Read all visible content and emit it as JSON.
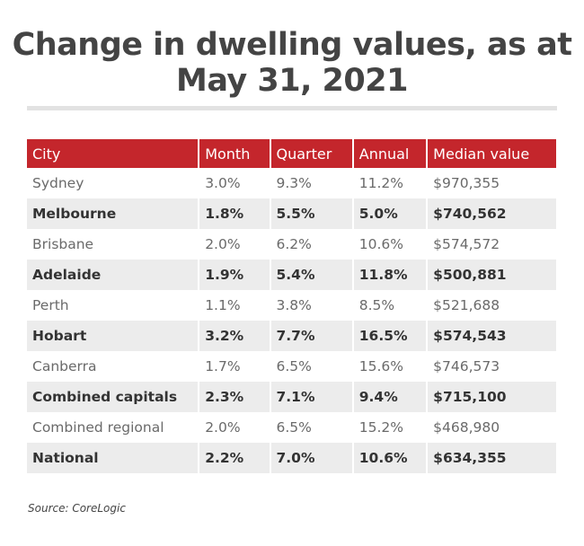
{
  "title": "Change in dwelling values, as at May 31, 2021",
  "source": "Source: CoreLogic",
  "colors": {
    "header": "#c4262c",
    "shade": "#ececec"
  },
  "chart_data": {
    "type": "table",
    "title": "Change in dwelling values, as at May 31, 2021",
    "columns": [
      "City",
      "Month",
      "Quarter",
      "Annual",
      "Median value"
    ],
    "rows": [
      [
        "Sydney",
        "3.0%",
        "9.3%",
        "11.2%",
        "$970,355"
      ],
      [
        "Melbourne",
        "1.8%",
        "5.5%",
        "5.0%",
        "$740,562"
      ],
      [
        "Brisbane",
        "2.0%",
        "6.2%",
        "10.6%",
        "$574,572"
      ],
      [
        "Adelaide",
        "1.9%",
        "5.4%",
        "11.8%",
        "$500,881"
      ],
      [
        "Perth",
        "1.1%",
        "3.8%",
        "8.5%",
        "$521,688"
      ],
      [
        "Hobart",
        "3.2%",
        "7.7%",
        "16.5%",
        "$574,543"
      ],
      [
        "Canberra",
        "1.7%",
        "6.5%",
        "15.6%",
        "$746,573"
      ],
      [
        "Combined capitals",
        "2.3%",
        "7.1%",
        "9.4%",
        "$715,100"
      ],
      [
        "Combined regional",
        "2.0%",
        "6.5%",
        "15.2%",
        "$468,980"
      ],
      [
        "National",
        "2.2%",
        "7.0%",
        "10.6%",
        "$634,355"
      ]
    ]
  }
}
